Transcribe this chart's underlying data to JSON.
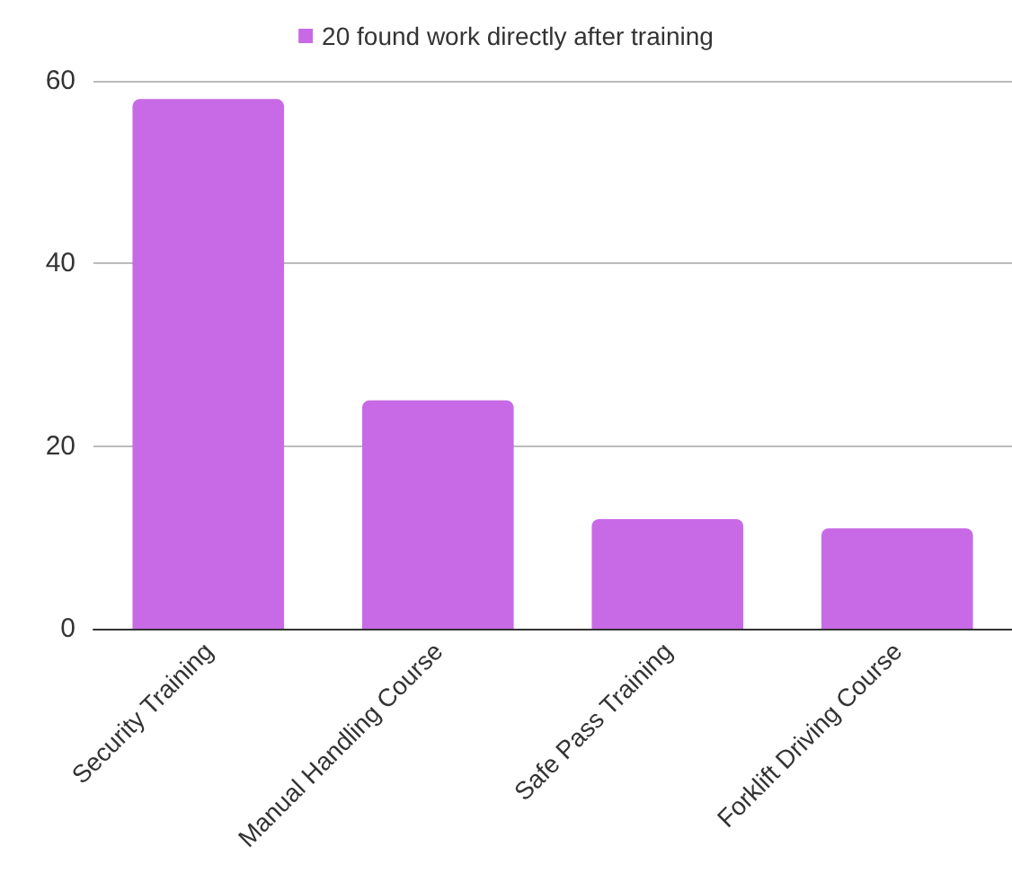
{
  "chart_data": {
    "type": "bar",
    "categories": [
      "Security Training",
      "Manual Handling Course",
      "Safe Pass Training",
      "Forklift Driving Course"
    ],
    "series": [
      {
        "name": "20 found work directly after training",
        "color": "#c86ae6",
        "values": [
          58,
          25,
          12,
          11
        ]
      }
    ],
    "ylim": [
      0,
      60
    ],
    "yticks": [
      0,
      20,
      40,
      60
    ],
    "grid": "y",
    "legend": "top"
  }
}
